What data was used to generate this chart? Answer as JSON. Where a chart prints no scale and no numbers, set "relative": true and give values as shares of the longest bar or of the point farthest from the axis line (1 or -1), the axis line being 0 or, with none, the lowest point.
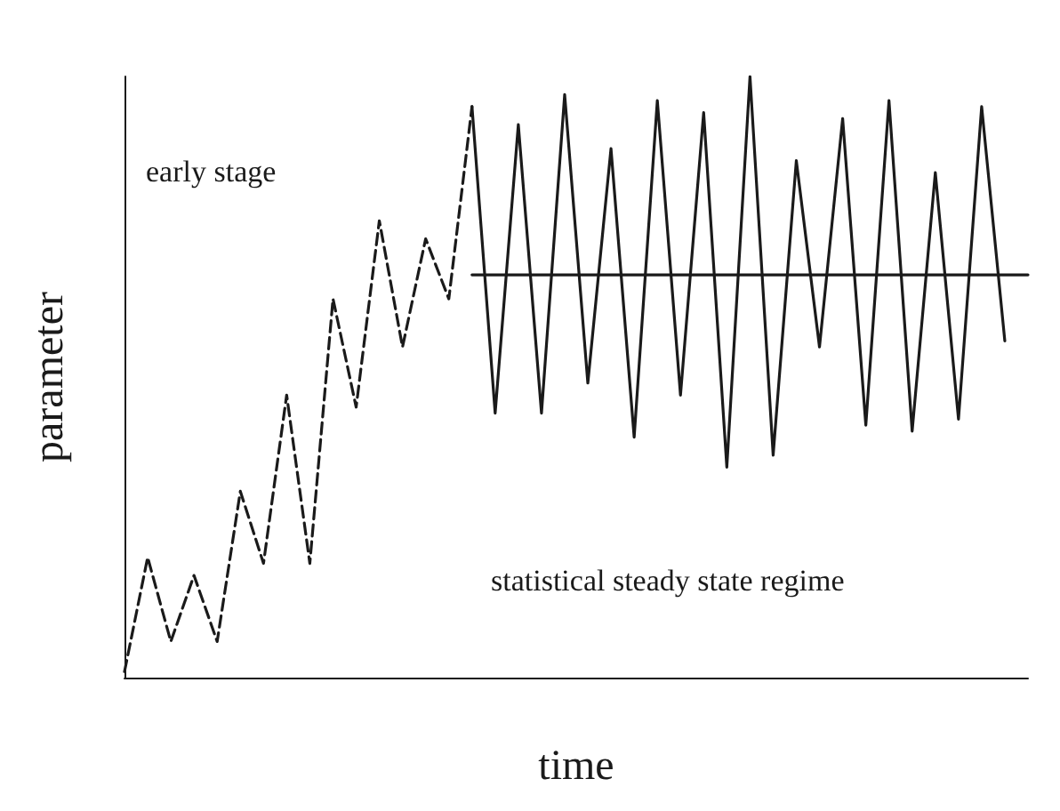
{
  "chart_data": {
    "type": "line",
    "relative": true,
    "xlabel": "time",
    "ylabel": "parameter",
    "categories": [
      null,
      null,
      null,
      null,
      null,
      null,
      null,
      null,
      null,
      null,
      null,
      null,
      null,
      null,
      null,
      null,
      null,
      null,
      null,
      null,
      null,
      null,
      null,
      null,
      null,
      null,
      null,
      null,
      null,
      null,
      null,
      null,
      null,
      null,
      null,
      null,
      null,
      null,
      null,
      null
    ],
    "series": [
      {
        "color": "#1a1a1a",
        "line_style": "dashed",
        "values": [
          0.01,
          0.2,
          0.06,
          0.17,
          0.06,
          0.31,
          0.19,
          0.47,
          0.19,
          0.63,
          0.45,
          0.76,
          0.55,
          0.73,
          0.63,
          0.95,
          null,
          null,
          null,
          null,
          null,
          null,
          null,
          null,
          null,
          null,
          null,
          null,
          null,
          null,
          null,
          null,
          null,
          null,
          null,
          null,
          null,
          null,
          null,
          null
        ]
      },
      {
        "color": "#1a1a1a",
        "line_style": "solid",
        "values": [
          null,
          null,
          null,
          null,
          null,
          null,
          null,
          null,
          null,
          null,
          null,
          null,
          null,
          null,
          null,
          0.95,
          0.44,
          0.92,
          0.44,
          0.97,
          0.49,
          0.88,
          0.4,
          0.96,
          0.47,
          0.94,
          0.35,
          1,
          0.37,
          0.86,
          0.55,
          0.93,
          0.42,
          0.96,
          0.41,
          0.84,
          0.43,
          0.95,
          0.56,
          null
        ]
      },
      {
        "color": "#1a1a1a",
        "line_style": "solid",
        "values": [
          null,
          null,
          null,
          null,
          null,
          null,
          null,
          null,
          null,
          null,
          null,
          null,
          null,
          null,
          null,
          0.67,
          0.67,
          0.67,
          0.67,
          0.67,
          0.67,
          0.67,
          0.67,
          0.67,
          0.67,
          0.67,
          0.67,
          0.67,
          0.67,
          0.67,
          0.67,
          0.67,
          0.67,
          0.67,
          0.67,
          0.67,
          0.67,
          0.67,
          0.67,
          0.67
        ]
      }
    ],
    "annotations": [
      "early stage",
      "statistical steady state regime"
    ],
    "grid": false,
    "marker": "none"
  }
}
